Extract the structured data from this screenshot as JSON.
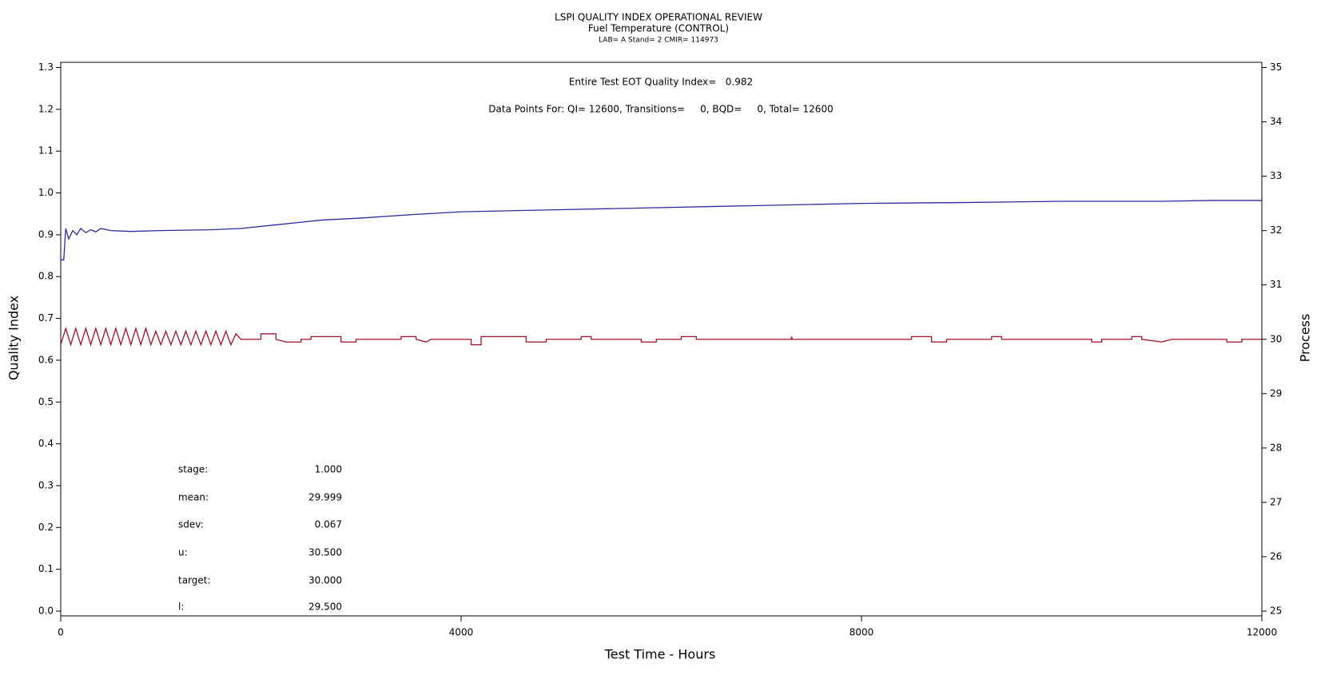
{
  "chart_data": {
    "type": "line",
    "title": "LSPI QUALITY INDEX OPERATIONAL REVIEW",
    "subtitle": "Fuel Temperature (CONTROL)",
    "subtitle2": "LAB= A Stand= 2 CMIR= 114973",
    "annotations": [
      "Entire Test EOT Quality Index=   0.982",
      "Data Points For: QI= 12600, Transitions=     0, BQD=     0, Total= 12600"
    ],
    "stats": [
      {
        "label": "stage:",
        "value": "1.000"
      },
      {
        "label": "mean:",
        "value": "29.999"
      },
      {
        "label": "sdev:",
        "value": "0.067"
      },
      {
        "label": "u:",
        "value": "30.500"
      },
      {
        "label": "target:",
        "value": "30.000"
      },
      {
        "label": "l:",
        "value": "29.500"
      }
    ],
    "xlabel": "Test Time - Hours",
    "ylabel": "Quality Index",
    "y2label": "Process",
    "xlim": [
      0,
      12000
    ],
    "xticks": [
      0,
      4000,
      8000,
      12000
    ],
    "ylim": [
      0,
      1.3
    ],
    "yticks": [
      {
        "value": 0,
        "label": "0.0"
      },
      {
        "value": 0.1,
        "label": "0.1"
      },
      {
        "value": 0.2,
        "label": "0.2"
      },
      {
        "value": 0.3,
        "label": "0.3"
      },
      {
        "value": 0.4,
        "label": "0.4"
      },
      {
        "value": 0.5,
        "label": "0.5"
      },
      {
        "value": 0.6,
        "label": "0.6"
      },
      {
        "value": 0.7,
        "label": "0.7"
      },
      {
        "value": 0.8,
        "label": "0.8"
      },
      {
        "value": 0.9,
        "label": "0.9"
      },
      {
        "value": 1.0,
        "label": "1.0"
      },
      {
        "value": 1.1,
        "label": "1.1"
      },
      {
        "value": 1.2,
        "label": "1.2"
      },
      {
        "value": 1.3,
        "label": "1.3"
      }
    ],
    "y2lim": [
      25,
      35
    ],
    "y2ticks": [
      25,
      26,
      27,
      28,
      29,
      30,
      31,
      32,
      33,
      34,
      35
    ],
    "series": [
      {
        "color": "#2b2b9a",
        "x": [
          0,
          30,
          50,
          80,
          120,
          160,
          200,
          250,
          300,
          350,
          400,
          500,
          700,
          1000,
          1500,
          1800,
          2200,
          2600,
          3000,
          3500,
          4000,
          5000,
          6000,
          7000,
          8000,
          9000,
          10000,
          11000,
          11500,
          12000
        ],
        "values": [
          0.84,
          0.84,
          0.915,
          0.89,
          0.91,
          0.9,
          0.915,
          0.905,
          0.912,
          0.907,
          0.915,
          0.91,
          0.908,
          0.91,
          0.912,
          0.915,
          0.925,
          0.935,
          0.94,
          0.948,
          0.955,
          0.96,
          0.965,
          0.97,
          0.975,
          0.977,
          0.98,
          0.98,
          0.982,
          0.982
        ]
      },
      {
        "color": "#a0102a",
        "axis": "y2",
        "x": [
          0,
          50,
          100,
          150,
          200,
          250,
          300,
          350,
          400,
          450,
          500,
          550,
          600,
          650,
          700,
          750,
          800,
          850,
          900,
          950,
          1000,
          1050,
          1100,
          1150,
          1200,
          1250,
          1300,
          1350,
          1400,
          1450,
          1500,
          1550,
          1600,
          1650,
          1700,
          1750,
          1800,
          2000,
          2000,
          2150,
          2150,
          2250,
          2400,
          2400,
          2500,
          2500,
          2800,
          2800,
          2950,
          2950,
          3400,
          3400,
          3550,
          3550,
          3650,
          3700,
          4100,
          4100,
          4200,
          4200,
          4650,
          4650,
          4850,
          4850,
          5200,
          5200,
          5300,
          5300,
          5800,
          5800,
          5950,
          5950,
          6200,
          6200,
          6350,
          6350,
          7300,
          7300,
          7310,
          8500,
          8500,
          8700,
          8700,
          8850,
          8850,
          9300,
          9300,
          9400,
          9400,
          10300,
          10300,
          10400,
          10400,
          10700,
          10700,
          10800,
          10800,
          11000,
          11100,
          11650,
          11650,
          11800,
          11800,
          12000
        ],
        "values": [
          29.9,
          30.2,
          29.9,
          30.2,
          29.9,
          30.2,
          29.9,
          30.2,
          29.9,
          30.2,
          29.9,
          30.2,
          29.9,
          30.2,
          29.9,
          30.2,
          29.9,
          30.2,
          29.9,
          30.15,
          29.9,
          30.15,
          29.9,
          30.15,
          29.9,
          30.15,
          29.9,
          30.15,
          29.9,
          30.15,
          29.9,
          30.15,
          29.9,
          30.15,
          29.9,
          30.1,
          30.0,
          30.0,
          30.1,
          30.1,
          30.0,
          29.95,
          29.95,
          30.0,
          30.0,
          30.05,
          30.05,
          29.95,
          29.95,
          30.0,
          30.0,
          30.05,
          30.05,
          30.0,
          29.95,
          30.0,
          30.0,
          29.9,
          29.9,
          30.05,
          30.05,
          29.95,
          29.95,
          30.0,
          30.0,
          30.05,
          30.05,
          30.0,
          30.0,
          29.95,
          29.95,
          30.0,
          30.0,
          30.05,
          30.05,
          30.0,
          30.0,
          30.05,
          30.0,
          30.0,
          30.05,
          30.05,
          29.95,
          29.95,
          30.0,
          30.0,
          30.05,
          30.05,
          30.0,
          30.0,
          29.95,
          29.95,
          30.0,
          30.0,
          30.05,
          30.05,
          30.0,
          29.95,
          30.0,
          30.0,
          29.95,
          29.95,
          30.0,
          30.0
        ]
      }
    ]
  }
}
